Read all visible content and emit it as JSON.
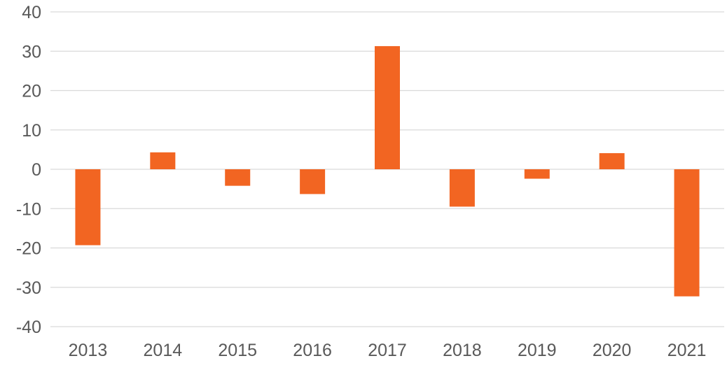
{
  "chart_data": {
    "type": "bar",
    "title": "",
    "xlabel": "",
    "ylabel": "",
    "categories": [
      "2013",
      "2014",
      "2015",
      "2016",
      "2017",
      "2018",
      "2019",
      "2020",
      "2021"
    ],
    "values": [
      -19.3,
      4.3,
      -4.2,
      -6.3,
      31.3,
      -9.5,
      -2.4,
      4.1,
      -32.3
    ],
    "ylim": [
      -40,
      40
    ],
    "yticks": [
      40,
      30,
      20,
      10,
      0,
      -10,
      -20,
      -30,
      -40
    ],
    "ytick_labels": [
      "40",
      "30",
      "20",
      "10",
      "0",
      "-10",
      "-20",
      "-30",
      "-40"
    ],
    "grid": true,
    "legend": "none",
    "bar_color": "#f26522",
    "grid_color": "#d9d9d9",
    "text_color": "#595959"
  }
}
